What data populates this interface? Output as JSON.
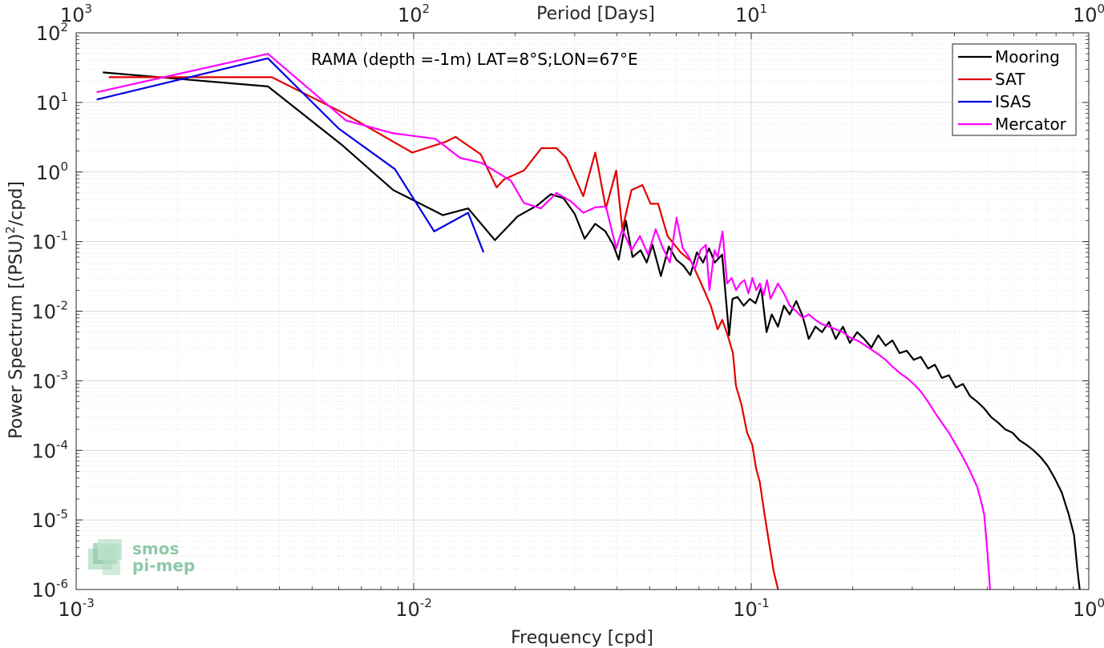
{
  "chart_data": {
    "type": "line",
    "title": "",
    "annotation": "RAMA (depth =-1m) LAT=8°S;LON=67°E",
    "xlabel": "Frequency [cpd]",
    "ylabel": "Power Spectrum [(PSU)",
    "ylabel_sup": "2",
    "ylabel_tail": "/cpd]",
    "top_xlabel": "Period [Days]",
    "xscale": "log",
    "yscale": "log",
    "xlim": [
      0.001,
      1
    ],
    "ylim": [
      1e-06,
      100
    ],
    "grid": true,
    "legend_position": "top-right",
    "x_ticks": [
      {
        "value": 0.001,
        "base": "10",
        "exp": "-3"
      },
      {
        "value": 0.01,
        "base": "10",
        "exp": "-2"
      },
      {
        "value": 0.1,
        "base": "10",
        "exp": "-1"
      },
      {
        "value": 1,
        "base": "10",
        "exp": "0"
      }
    ],
    "top_ticks": [
      {
        "value": 0.001,
        "base": "10",
        "exp": "3"
      },
      {
        "value": 0.01,
        "base": "10",
        "exp": "2"
      },
      {
        "value": 0.1,
        "base": "10",
        "exp": "1"
      },
      {
        "value": 1,
        "base": "10",
        "exp": "0"
      }
    ],
    "y_ticks": [
      {
        "value": 1e-06,
        "base": "10",
        "exp": "-6"
      },
      {
        "value": 1e-05,
        "base": "10",
        "exp": "-5"
      },
      {
        "value": 0.0001,
        "base": "10",
        "exp": "-4"
      },
      {
        "value": 0.001,
        "base": "10",
        "exp": "-3"
      },
      {
        "value": 0.01,
        "base": "10",
        "exp": "-2"
      },
      {
        "value": 0.1,
        "base": "10",
        "exp": "-1"
      },
      {
        "value": 1,
        "base": "10",
        "exp": "0"
      },
      {
        "value": 10,
        "base": "10",
        "exp": "1"
      },
      {
        "value": 100,
        "base": "10",
        "exp": "2"
      }
    ],
    "series": [
      {
        "name": "Mooring",
        "color": "#000000",
        "x": [
          0.0012,
          0.0037,
          0.0061,
          0.0087,
          0.0122,
          0.0145,
          0.0174,
          0.0203,
          0.0232,
          0.0255,
          0.0278,
          0.03,
          0.0321,
          0.0345,
          0.037,
          0.039,
          0.0405,
          0.0425,
          0.0445,
          0.047,
          0.049,
          0.051,
          0.054,
          0.057,
          0.06,
          0.063,
          0.066,
          0.069,
          0.072,
          0.075,
          0.078,
          0.082,
          0.086,
          0.088,
          0.091,
          0.095,
          0.099,
          0.103,
          0.107,
          0.111,
          0.115,
          0.12,
          0.125,
          0.13,
          0.136,
          0.142,
          0.148,
          0.155,
          0.162,
          0.17,
          0.178,
          0.187,
          0.196,
          0.206,
          0.216,
          0.227,
          0.238,
          0.25,
          0.262,
          0.275,
          0.289,
          0.303,
          0.318,
          0.334,
          0.35,
          0.367,
          0.385,
          0.404,
          0.424,
          0.445,
          0.467,
          0.49,
          0.514,
          0.539,
          0.566,
          0.594,
          0.623,
          0.654,
          0.686,
          0.72,
          0.755,
          0.792,
          0.831,
          0.872,
          0.905,
          0.925,
          0.94
        ],
        "y": [
          27,
          17,
          2.5,
          0.55,
          0.24,
          0.3,
          0.105,
          0.23,
          0.33,
          0.48,
          0.42,
          0.25,
          0.11,
          0.18,
          0.14,
          0.09,
          0.055,
          0.2,
          0.06,
          0.075,
          0.05,
          0.09,
          0.032,
          0.085,
          0.055,
          0.045,
          0.033,
          0.07,
          0.05,
          0.08,
          0.05,
          0.065,
          0.0045,
          0.015,
          0.016,
          0.012,
          0.015,
          0.013,
          0.022,
          0.005,
          0.009,
          0.006,
          0.012,
          0.009,
          0.014,
          0.0085,
          0.004,
          0.006,
          0.005,
          0.007,
          0.004,
          0.006,
          0.0035,
          0.005,
          0.004,
          0.003,
          0.0045,
          0.0032,
          0.0038,
          0.0025,
          0.0027,
          0.002,
          0.0022,
          0.0015,
          0.0017,
          0.0011,
          0.0012,
          0.0008,
          0.0009,
          0.0006,
          0.0005,
          0.0004,
          0.0003,
          0.00025,
          0.0002,
          0.00018,
          0.00014,
          0.00012,
          0.0001,
          8e-05,
          6e-05,
          4e-05,
          2.5e-05,
          1.2e-05,
          6e-06,
          2e-06,
          1e-06
        ]
      },
      {
        "name": "SAT",
        "color": "#e30000",
        "x": [
          0.00125,
          0.0038,
          0.0062,
          0.0099,
          0.0124,
          0.0133,
          0.0158,
          0.0176,
          0.0185,
          0.0212,
          0.0239,
          0.0265,
          0.0283,
          0.0318,
          0.0345,
          0.0353,
          0.0371,
          0.0398,
          0.0415,
          0.0442,
          0.0476,
          0.0503,
          0.053,
          0.0565,
          0.0618,
          0.0662,
          0.0706,
          0.0759,
          0.0795,
          0.0821,
          0.0848,
          0.0883,
          0.0901,
          0.0936,
          0.0972,
          0.1007,
          0.1034,
          0.106,
          0.1095,
          0.1131,
          0.1166,
          0.1201
        ],
        "y": [
          23,
          23,
          7,
          1.9,
          2.7,
          3.2,
          1.8,
          0.6,
          0.78,
          1.05,
          2.2,
          2.2,
          1.6,
          0.45,
          1.9,
          1.1,
          0.3,
          1.05,
          0.15,
          0.55,
          0.65,
          0.35,
          0.35,
          0.12,
          0.07,
          0.053,
          0.027,
          0.012,
          0.0055,
          0.0075,
          0.0048,
          0.0025,
          0.00085,
          0.00045,
          0.00018,
          0.00012,
          5.5e-05,
          3.5e-05,
          1.2e-05,
          4.5e-06,
          1.8e-06,
          1e-06
        ]
      },
      {
        "name": "ISAS",
        "color": "#0000e6",
        "x": [
          0.00115,
          0.0037,
          0.006,
          0.0088,
          0.0115,
          0.0145,
          0.0161
        ],
        "y": [
          11,
          43,
          4.2,
          1.1,
          0.14,
          0.26,
          0.07
        ]
      },
      {
        "name": "Mercator",
        "color": "#ff00ff",
        "x": [
          0.00115,
          0.0037,
          0.0063,
          0.0087,
          0.0116,
          0.0137,
          0.0159,
          0.0194,
          0.0212,
          0.0238,
          0.0265,
          0.0292,
          0.0318,
          0.0345,
          0.0371,
          0.0398,
          0.0415,
          0.0442,
          0.0468,
          0.0495,
          0.0521,
          0.0548,
          0.0574,
          0.0601,
          0.0627,
          0.0654,
          0.0681,
          0.0707,
          0.0734,
          0.0752,
          0.0778,
          0.0795,
          0.0822,
          0.0848,
          0.0875,
          0.0902,
          0.0928,
          0.0955,
          0.0981,
          0.1008,
          0.1035,
          0.1061,
          0.1088,
          0.1114,
          0.1141,
          0.12,
          0.125,
          0.13,
          0.136,
          0.142,
          0.148,
          0.155,
          0.162,
          0.17,
          0.178,
          0.187,
          0.196,
          0.206,
          0.216,
          0.227,
          0.238,
          0.25,
          0.262,
          0.275,
          0.289,
          0.303,
          0.318,
          0.334,
          0.35,
          0.367,
          0.385,
          0.404,
          0.424,
          0.445,
          0.467,
          0.478,
          0.49,
          0.502,
          0.51
        ],
        "y": [
          14,
          50,
          5.5,
          3.6,
          3,
          1.6,
          1.35,
          0.75,
          0.36,
          0.3,
          0.5,
          0.38,
          0.26,
          0.31,
          0.32,
          0.08,
          0.15,
          0.075,
          0.12,
          0.065,
          0.15,
          0.08,
          0.05,
          0.22,
          0.08,
          0.06,
          0.04,
          0.075,
          0.09,
          0.02,
          0.075,
          0.06,
          0.14,
          0.025,
          0.03,
          0.02,
          0.025,
          0.028,
          0.018,
          0.03,
          0.02,
          0.025,
          0.017,
          0.028,
          0.015,
          0.025,
          0.018,
          0.012,
          0.01,
          0.008,
          0.009,
          0.0075,
          0.0065,
          0.006,
          0.0055,
          0.005,
          0.0042,
          0.0038,
          0.0033,
          0.0028,
          0.0024,
          0.002,
          0.0016,
          0.0013,
          0.0011,
          0.0009,
          0.0007,
          0.0005,
          0.00035,
          0.00025,
          0.00018,
          0.00012,
          8e-05,
          5e-05,
          3e-05,
          2e-05,
          1.2e-05,
          3e-06,
          1e-06
        ]
      }
    ]
  },
  "logo": {
    "line1": "smos",
    "line2": "pi-mep",
    "color": "#8cc9a7"
  }
}
